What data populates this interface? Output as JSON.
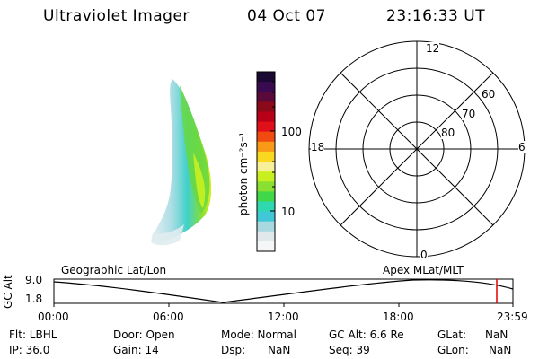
{
  "header": {
    "title": "Ultraviolet Imager",
    "date": "04 Oct 07",
    "time": "23:16:33 UT"
  },
  "colorbar": {
    "label": "photon cm⁻²s⁻¹",
    "ticks": [
      "100",
      "10"
    ],
    "colors": [
      "#1a0a33",
      "#3a0a50",
      "#5a0a3a",
      "#8a0a1a",
      "#b80018",
      "#e0101a",
      "#f04a10",
      "#f89a18",
      "#f8d820",
      "#f8f098",
      "#c8f020",
      "#8ae030",
      "#40d848",
      "#30d8b0",
      "#40c8d8",
      "#a8d8e0",
      "#e0e8ec",
      "#f4f6f8"
    ]
  },
  "polar": {
    "mlt_labels": {
      "top": "12",
      "left": "18",
      "right": "6",
      "bottom": "0"
    },
    "lat_labels": [
      "60",
      "70",
      "80"
    ]
  },
  "timeline": {
    "ylabel": "GC Alt",
    "ymax": "9.0",
    "ymin": "1.8",
    "left_caption": "Geographic Lat/Lon",
    "right_caption": "Apex  MLat/MLT",
    "xticks": [
      "00:00",
      "06:00",
      "12:00",
      "18:00",
      "23:59"
    ],
    "current_marker_color": "#e00000"
  },
  "info": {
    "flt": "Flt: LBHL",
    "door": "Door: Open",
    "mode": "Mode: Normal",
    "gc_alt": "GC Alt: 6.6 Re",
    "glat_label": "GLat:",
    "glat_value": "NaN",
    "ip": "IP: 36.0",
    "gain": "Gain: 14",
    "dsp_label": "Dsp:",
    "dsp_value": "NaN",
    "seq": "Seq: 39",
    "glon_label": "GLon:",
    "glon_value": "NaN"
  }
}
